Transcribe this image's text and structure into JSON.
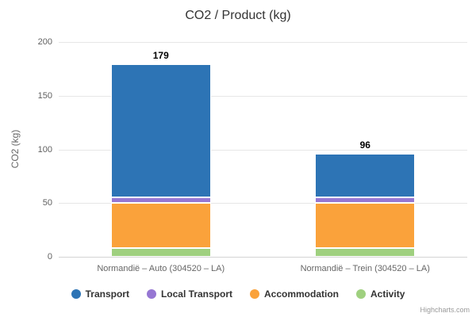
{
  "chart_data": {
    "type": "bar",
    "stacked": true,
    "title": "CO2 / Product (kg)",
    "ylabel": "CO2 (kg)",
    "xlabel": "",
    "categories": [
      "Normandië – Auto (304520 – LA)",
      "Normandië – Trein (304520 – LA)"
    ],
    "series": [
      {
        "name": "Transport",
        "color": "#2d74b5",
        "values": [
          124,
          41
        ]
      },
      {
        "name": "Local Transport",
        "color": "#9677d3",
        "values": [
          5,
          5
        ]
      },
      {
        "name": "Accommodation",
        "color": "#faa23b",
        "values": [
          42,
          42
        ]
      },
      {
        "name": "Activity",
        "color": "#9fd07f",
        "values": [
          8,
          8
        ]
      }
    ],
    "stack_totals": [
      179,
      96
    ],
    "yticks": [
      0,
      50,
      100,
      150,
      200
    ],
    "ylim": [
      0,
      200
    ],
    "grid": true,
    "legend_position": "bottom",
    "credits": "Highcharts.com"
  }
}
